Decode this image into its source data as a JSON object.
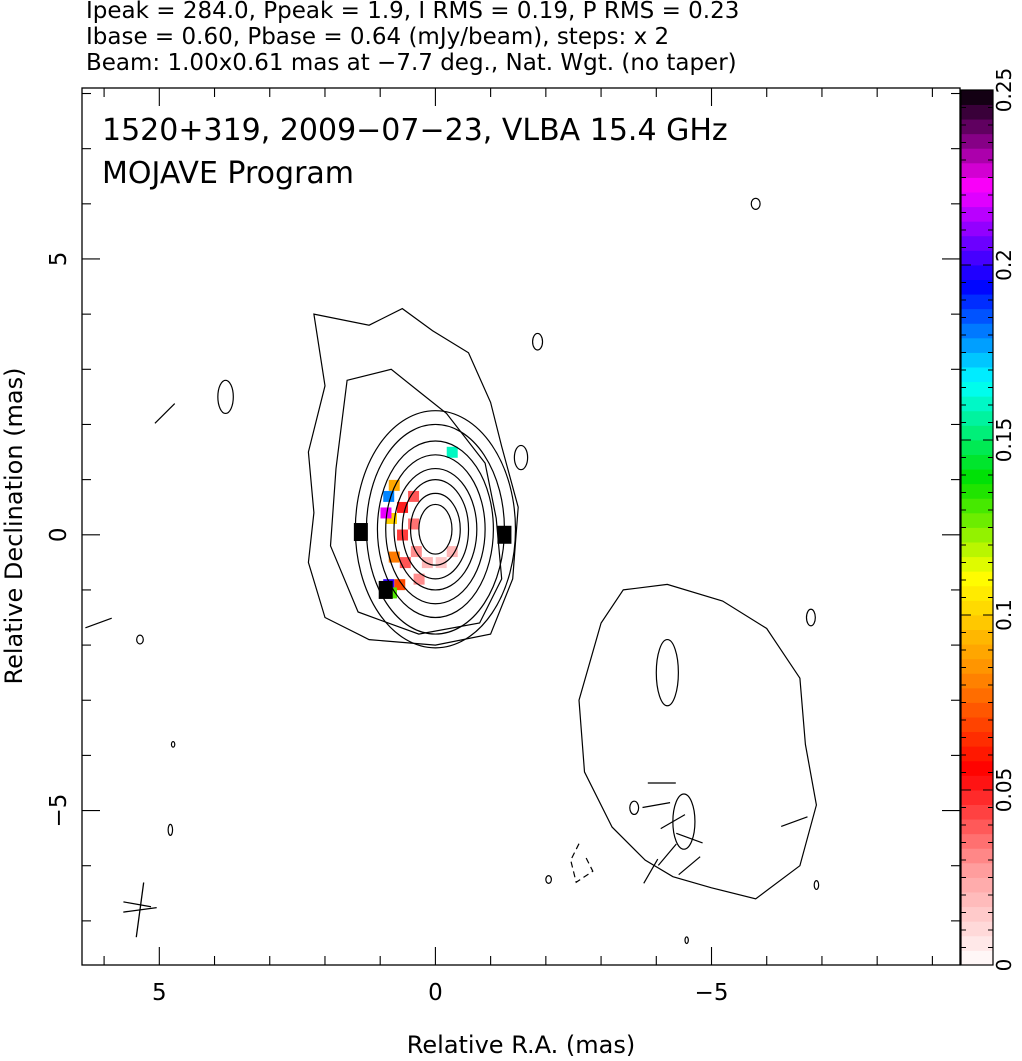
{
  "header": {
    "line1": "Ipeak = 284.0, Ppeak = 1.9, I RMS = 0.19, P RMS = 0.23",
    "line2": "Ibase = 0.60, Pbase = 0.64 (mJy/beam), steps: x 2",
    "line3": "Beam: 1.00x0.61 mas at −7.7 deg., Nat. Wgt. (no taper)"
  },
  "chart_data": {
    "type": "heatmap",
    "title": "1520+319, 2009−07−23, VLBA 15.4 GHz",
    "subtitle": "MOJAVE Program",
    "xlabel": "Relative R.A. (mas)",
    "ylabel": "Relative Declination (mas)",
    "xlim": [
      6.4,
      -9.5
    ],
    "ylim": [
      -7.8,
      8.1
    ],
    "x_ticks": [
      {
        "value": 5,
        "label": "5"
      },
      {
        "value": 0,
        "label": "0"
      },
      {
        "value": -5,
        "label": "−5"
      }
    ],
    "y_ticks": [
      {
        "value": 5,
        "label": "5"
      },
      {
        "value": 0,
        "label": "0"
      },
      {
        "value": -5,
        "label": "−5"
      }
    ],
    "colorbar": {
      "range": [
        0,
        0.25
      ],
      "ticks": [
        {
          "value": 0,
          "label": "0"
        },
        {
          "value": 0.05,
          "label": "0.05"
        },
        {
          "value": 0.1,
          "label": "0.1"
        },
        {
          "value": 0.15,
          "label": "0.15"
        },
        {
          "value": 0.2,
          "label": "0.2"
        },
        {
          "value": 0.25,
          "label": "0.25"
        }
      ],
      "colormap": [
        "#ffffff",
        "#ff9a9a",
        "#ff0000",
        "#ff8c00",
        "#ffff00",
        "#00e000",
        "#00ffff",
        "#0000ff",
        "#ff00ff",
        "#000000"
      ]
    },
    "contours": {
      "core": {
        "center": [
          0.0,
          0.1
        ],
        "levels": [
          {
            "a": 0.3,
            "b": 0.45
          },
          {
            "a": 0.45,
            "b": 0.65
          },
          {
            "a": 0.6,
            "b": 0.9
          },
          {
            "a": 0.75,
            "b": 1.1
          },
          {
            "a": 0.9,
            "b": 1.35
          },
          {
            "a": 1.05,
            "b": 1.6
          },
          {
            "a": 1.25,
            "b": 1.9
          },
          {
            "a": 1.45,
            "b": 2.15
          }
        ]
      },
      "core_envelope": [
        [
          2.2,
          4.0
        ],
        [
          1.2,
          3.8
        ],
        [
          0.6,
          4.1
        ],
        [
          0.05,
          3.7
        ],
        [
          -0.6,
          3.3
        ],
        [
          -1.0,
          2.4
        ],
        [
          -1.2,
          1.6
        ],
        [
          -1.5,
          0.5
        ],
        [
          -1.4,
          -0.8
        ],
        [
          -1.0,
          -1.8
        ],
        [
          0.0,
          -2.0
        ],
        [
          1.2,
          -1.9
        ],
        [
          2.0,
          -1.5
        ],
        [
          2.3,
          -0.5
        ],
        [
          2.2,
          0.4
        ],
        [
          2.3,
          1.5
        ],
        [
          2.0,
          2.7
        ],
        [
          2.2,
          4.0
        ]
      ],
      "inner_envelope": [
        [
          1.6,
          2.8
        ],
        [
          0.8,
          3.0
        ],
        [
          0.3,
          2.6
        ],
        [
          -0.2,
          2.2
        ],
        [
          -0.9,
          1.3
        ],
        [
          -1.1,
          0.3
        ],
        [
          -1.2,
          -0.8
        ],
        [
          -0.8,
          -1.6
        ],
        [
          0.3,
          -1.8
        ],
        [
          1.4,
          -1.4
        ],
        [
          1.9,
          -0.2
        ],
        [
          1.8,
          1.2
        ],
        [
          1.6,
          2.8
        ]
      ],
      "jet_envelope": [
        [
          -3.4,
          -1.0
        ],
        [
          -4.2,
          -0.9
        ],
        [
          -5.2,
          -1.2
        ],
        [
          -6.0,
          -1.7
        ],
        [
          -6.6,
          -2.6
        ],
        [
          -6.7,
          -3.8
        ],
        [
          -6.9,
          -4.9
        ],
        [
          -6.6,
          -6.0
        ],
        [
          -5.8,
          -6.6
        ],
        [
          -5.0,
          -6.4
        ],
        [
          -4.3,
          -6.2
        ],
        [
          -3.8,
          -5.9
        ],
        [
          -3.2,
          -5.3
        ],
        [
          -2.7,
          -4.3
        ],
        [
          -2.6,
          -3.0
        ],
        [
          -3.0,
          -1.6
        ],
        [
          -3.4,
          -1.0
        ]
      ],
      "blobs": [
        {
          "cx": 3.8,
          "cy": 2.5,
          "rx": 0.14,
          "ry": 0.3
        },
        {
          "cx": -1.85,
          "cy": 3.5,
          "rx": 0.09,
          "ry": 0.15
        },
        {
          "cx": -1.55,
          "cy": 1.4,
          "rx": 0.12,
          "ry": 0.22
        },
        {
          "cx": -5.8,
          "cy": 6.0,
          "rx": 0.08,
          "ry": 0.1
        },
        {
          "cx": -4.2,
          "cy": -2.5,
          "rx": 0.2,
          "ry": 0.6
        },
        {
          "cx": -4.5,
          "cy": -5.2,
          "rx": 0.2,
          "ry": 0.5
        },
        {
          "cx": -3.6,
          "cy": -4.95,
          "rx": 0.08,
          "ry": 0.12
        },
        {
          "cx": -6.8,
          "cy": -1.5,
          "rx": 0.08,
          "ry": 0.15
        },
        {
          "cx": 4.8,
          "cy": -5.35,
          "rx": 0.04,
          "ry": 0.1
        },
        {
          "cx": 4.75,
          "cy": -3.8,
          "rx": 0.03,
          "ry": 0.05
        },
        {
          "cx": 5.35,
          "cy": -1.9,
          "rx": 0.06,
          "ry": 0.08
        },
        {
          "cx": -2.05,
          "cy": -6.25,
          "rx": 0.05,
          "ry": 0.07
        },
        {
          "cx": -6.9,
          "cy": -6.35,
          "rx": 0.04,
          "ry": 0.08
        },
        {
          "cx": -4.55,
          "cy": -7.35,
          "rx": 0.03,
          "ry": 0.06
        }
      ],
      "dashed": [
        [
          [
            -2.6,
            -5.6
          ],
          [
            -2.45,
            -5.9
          ],
          [
            -2.55,
            -6.3
          ],
          [
            -2.85,
            -6.1
          ],
          [
            -2.7,
            -5.8
          ]
        ]
      ]
    },
    "polarization": {
      "pixels": [
        {
          "x": 0.6,
          "y": 0.5,
          "v": 0.05
        },
        {
          "x": 0.6,
          "y": 0.0,
          "v": 0.045
        },
        {
          "x": 0.55,
          "y": -0.5,
          "v": 0.04
        },
        {
          "x": 0.4,
          "y": 0.7,
          "v": 0.04
        },
        {
          "x": 0.4,
          "y": 0.2,
          "v": 0.035
        },
        {
          "x": 0.35,
          "y": -0.3,
          "v": 0.03
        },
        {
          "x": 0.3,
          "y": -0.8,
          "v": 0.03
        },
        {
          "x": 0.15,
          "y": -0.5,
          "v": 0.02
        },
        {
          "x": -0.1,
          "y": -0.5,
          "v": 0.015
        },
        {
          "x": -0.3,
          "y": -0.3,
          "v": 0.02
        },
        {
          "x": 0.75,
          "y": 0.9,
          "v": 0.09
        },
        {
          "x": 0.8,
          "y": 0.3,
          "v": 0.1
        },
        {
          "x": 0.75,
          "y": -0.4,
          "v": 0.08
        },
        {
          "x": 0.65,
          "y": -0.9,
          "v": 0.07
        },
        {
          "x": 0.85,
          "y": 0.7,
          "v": 0.18
        },
        {
          "x": 0.85,
          "y": -0.9,
          "v": 0.2
        },
        {
          "x": 0.8,
          "y": -1.05,
          "v": 0.13
        },
        {
          "x": 0.9,
          "y": 0.4,
          "v": 0.22
        },
        {
          "x": -0.3,
          "y": 1.5,
          "v": 0.16
        }
      ],
      "black_marks": [
        {
          "x": 1.35,
          "y": 0.05
        },
        {
          "x": 0.9,
          "y": -1.0
        },
        {
          "x": -1.25,
          "y": 0.0
        }
      ],
      "vectors": [
        {
          "x": -4.0,
          "y": -4.9,
          "angle": 10
        },
        {
          "x": -4.3,
          "y": -5.2,
          "angle": 30
        },
        {
          "x": -4.6,
          "y": -5.5,
          "angle": -20
        },
        {
          "x": -4.2,
          "y": -5.8,
          "angle": 50
        },
        {
          "x": -3.9,
          "y": -6.1,
          "angle": 60
        },
        {
          "x": -4.6,
          "y": -6.0,
          "angle": 40
        },
        {
          "x": -4.1,
          "y": -4.5,
          "angle": 0
        },
        {
          "x": -6.5,
          "y": -5.2,
          "angle": 20
        },
        {
          "x": 5.4,
          "y": -6.7,
          "angle": -10
        },
        {
          "x": 6.1,
          "y": -1.6,
          "angle": 20
        },
        {
          "x": 4.9,
          "y": 2.2,
          "angle": 45
        }
      ]
    },
    "beam": {
      "x": 5.35,
      "y": -6.8,
      "major": 1.0,
      "minor": 0.61,
      "pa_deg": -7.7
    }
  }
}
